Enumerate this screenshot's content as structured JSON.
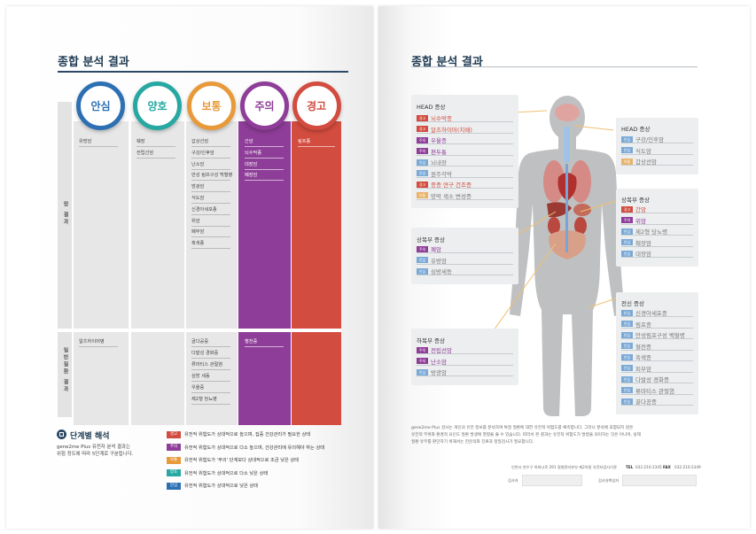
{
  "left": {
    "title": "종합 분석 결과",
    "side_labels": {
      "top": "암 결과",
      "bottom": "일반질환 결과"
    },
    "columns": [
      {
        "key": "safe",
        "label": "안심",
        "color": "#2c6fb3",
        "items_top": [
          "유방암"
        ],
        "items_bottom": [
          "알츠하이머병"
        ]
      },
      {
        "key": "good",
        "label": "양호",
        "color": "#28a8a2",
        "items_top": [
          "췌장",
          "전립선암"
        ],
        "items_bottom": []
      },
      {
        "key": "normal",
        "label": "보통",
        "color": "#e89a3a",
        "items_top": [
          "갑상선암",
          "구강/인후암",
          "난소암",
          "만성 림프구성 백혈병",
          "방광암",
          "식도암",
          "신경아세포종",
          "위암",
          "폐부암",
          "흑색종"
        ],
        "items_bottom": [
          "골다공증",
          "다발성 경화증",
          "류마티스 관절염",
          "심방 세동",
          "우울증",
          "제2형 당뇨병"
        ]
      },
      {
        "key": "caution",
        "label": "주의",
        "color": "#8e3d98",
        "items_top": [
          "간암",
          "뇌수막종",
          "대장암",
          "폐장암"
        ],
        "items_bottom": [
          "혈전증"
        ]
      },
      {
        "key": "warning",
        "label": "경고",
        "color": "#d24c3f",
        "items_top": [
          "림프종"
        ],
        "items_bottom": []
      }
    ],
    "stage": {
      "title": "단계별 해석",
      "desc_line1": "gene2me Plus 유전자 분석 결과는",
      "desc_line2": "위험 정도에 따라 5단계로 구분됩니다."
    },
    "legend": [
      {
        "badge": "경고",
        "color": "#d24c3f",
        "text": "유전적 위험도가 상대적으로 높으며, 집중 건강관리가 필요한 상태"
      },
      {
        "badge": "주의",
        "color": "#8e3d98",
        "text": "유전적 위험도가 상대적으로 다소 높으며, 건강관리에 유의해야 하는 상태"
      },
      {
        "badge": "보통",
        "color": "#e89a3a",
        "text": "유전적 위험도가 '주의' 단계보다 상대적으로 조금 낮은 상태"
      },
      {
        "badge": "양호",
        "color": "#28a8a2",
        "text": "유전적 위험도가 상대적으로 다소 낮은 상태"
      },
      {
        "badge": "안심",
        "color": "#2c6fb3",
        "text": "유전적 위험도가 상대적으로 낮은 상태"
      }
    ]
  },
  "right": {
    "title": "종합 분석 결과",
    "panels": {
      "head_left": {
        "title": "HEAD 증상",
        "rows": [
          {
            "tag": "경고",
            "color": "#d24c3f",
            "text": "뇌수막종"
          },
          {
            "tag": "경고",
            "color": "#d24c3f",
            "text": "알츠하이머(치매)"
          },
          {
            "tag": "주의",
            "color": "#8e3d98",
            "text": "우울증"
          },
          {
            "tag": "주의",
            "color": "#8e3d98",
            "text": "편두통"
          },
          {
            "tag": "안심",
            "color": "#7aa9d6",
            "text": "뇌내장"
          },
          {
            "tag": "안심",
            "color": "#7aa9d6",
            "text": "원주각막"
          },
          {
            "tag": "경고",
            "color": "#d24c3f",
            "text": "종증 연구 건조증"
          },
          {
            "tag": "보통",
            "color": "#e8b36a",
            "text": "망막 색소 변성증"
          }
        ]
      },
      "upper_left": {
        "title": "상복부 증상",
        "rows": [
          {
            "tag": "주의",
            "color": "#8e3d98",
            "text": "폐암"
          },
          {
            "tag": "안심",
            "color": "#7aa9d6",
            "text": "유방암"
          },
          {
            "tag": "안심",
            "color": "#7aa9d6",
            "text": "심방세동"
          }
        ]
      },
      "lower_left": {
        "title": "하복부 증상",
        "rows": [
          {
            "tag": "주의",
            "color": "#8e3d98",
            "text": "전립선암"
          },
          {
            "tag": "주의",
            "color": "#8e3d98",
            "text": "난소암"
          },
          {
            "tag": "안심",
            "color": "#7aa9d6",
            "text": "방광암"
          }
        ]
      },
      "head_right": {
        "title": "HEAD 증상",
        "rows": [
          {
            "tag": "안심",
            "color": "#7aa9d6",
            "text": "구강/인후암"
          },
          {
            "tag": "안심",
            "color": "#7aa9d6",
            "text": "식도암"
          },
          {
            "tag": "보통",
            "color": "#e8b36a",
            "text": "갑상선암"
          }
        ]
      },
      "upper_right": {
        "title": "상복부 증상",
        "rows": [
          {
            "tag": "경고",
            "color": "#d24c3f",
            "text": "간암"
          },
          {
            "tag": "주의",
            "color": "#8e3d98",
            "text": "위암"
          },
          {
            "tag": "안심",
            "color": "#7aa9d6",
            "text": "제2형 당뇨병"
          },
          {
            "tag": "안심",
            "color": "#7aa9d6",
            "text": "췌장암"
          },
          {
            "tag": "안심",
            "color": "#7aa9d6",
            "text": "대장암"
          }
        ]
      },
      "whole_right": {
        "title": "전신 증상",
        "rows": [
          {
            "tag": "안심",
            "color": "#7aa9d6",
            "text": "신경아세포종"
          },
          {
            "tag": "안심",
            "color": "#7aa9d6",
            "text": "림프종"
          },
          {
            "tag": "안심",
            "color": "#7aa9d6",
            "text": "만성림프구성 백혈병"
          },
          {
            "tag": "안심",
            "color": "#7aa9d6",
            "text": "혈전증"
          },
          {
            "tag": "안심",
            "color": "#7aa9d6",
            "text": "흑색종"
          },
          {
            "tag": "안심",
            "color": "#7aa9d6",
            "text": "피부암"
          },
          {
            "tag": "안심",
            "color": "#7aa9d6",
            "text": "다발성 경화증"
          },
          {
            "tag": "안심",
            "color": "#7aa9d6",
            "text": "류마티스 관절염"
          },
          {
            "tag": "안심",
            "color": "#7aa9d6",
            "text": "골다공증"
          }
        ]
      }
    },
    "footnote_line1": "gene2me Plus 검사는 개인의 유전 정보를 분석하여 특정 질환에 대한 유전적 위험도를 예측합니다. 그러나 분석에 포함되지 않은",
    "footnote_line2": "유전적 부위와 환경적 요인도 질환 발생에 영향을 줄 수 있습니다. 따라서 본 결과는 유전적 위험도가 발병을 의미하는 것은 아니며, 실제",
    "footnote_line3": "질환 유무를 판단하기 위해서는 전문의와 진료과 정밀검사가 필요합니다.",
    "contact_prefix": "인천시 연수구 하와나로 291 질병관리본부 제2차원 유전자검사기관",
    "tel_label": "TEL",
    "tel": "032-210-2345",
    "fax_label": "FAX",
    "fax": "032-210-2349",
    "field_left": "검사자",
    "field_right": "검사실책임자"
  }
}
